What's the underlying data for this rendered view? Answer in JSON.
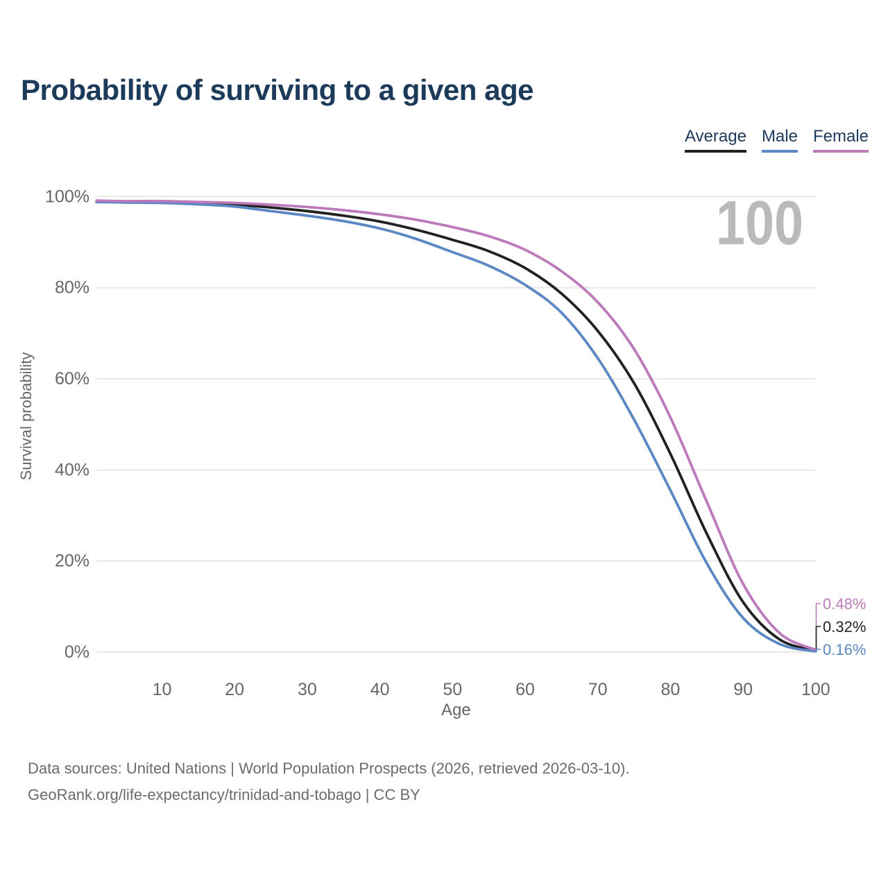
{
  "title": "Probability of surviving to a given age",
  "watermark": "100",
  "chart_data": {
    "type": "line",
    "title": "Probability of surviving to a given age",
    "xlabel": "Age",
    "ylabel": "Survival probability",
    "xlim": [
      1,
      100
    ],
    "ylim": [
      0,
      100
    ],
    "x_ticks": [
      10,
      20,
      30,
      40,
      50,
      60,
      70,
      80,
      90,
      100
    ],
    "y_ticks": [
      0,
      20,
      40,
      60,
      80,
      100
    ],
    "y_tick_suffix": "%",
    "grid": "horizontal-only",
    "legend_position": "top-right",
    "x": [
      1,
      5,
      10,
      15,
      20,
      25,
      30,
      35,
      40,
      45,
      50,
      55,
      60,
      65,
      70,
      75,
      80,
      85,
      90,
      95,
      100
    ],
    "series": [
      {
        "name": "Average",
        "color": "#222222",
        "end_label": "0.32%",
        "values": [
          99.0,
          98.9,
          98.8,
          98.6,
          98.2,
          97.6,
          96.8,
          95.8,
          94.5,
          92.7,
          90.5,
          88.0,
          84.3,
          78.7,
          70.5,
          59.0,
          43.5,
          26.0,
          11.0,
          2.8,
          0.32
        ]
      },
      {
        "name": "Male",
        "color": "#5b87c5",
        "end_label": "0.16%",
        "values": [
          98.8,
          98.7,
          98.6,
          98.3,
          97.8,
          96.8,
          95.8,
          94.6,
          93.0,
          90.7,
          87.8,
          84.8,
          80.6,
          74.5,
          64.5,
          51.0,
          35.5,
          19.5,
          7.5,
          1.8,
          0.16
        ]
      },
      {
        "name": "Female",
        "color": "#bd7abb",
        "end_label": "0.48%",
        "values": [
          99.1,
          99.0,
          99.0,
          98.8,
          98.6,
          98.2,
          97.7,
          97.0,
          96.1,
          94.9,
          93.3,
          91.3,
          88.3,
          83.6,
          76.8,
          66.5,
          51.5,
          33.0,
          15.0,
          4.2,
          0.48
        ]
      }
    ],
    "watermark": "100"
  },
  "colors": {
    "title_text": "#1c3a5a",
    "axis_text": "#666666",
    "gridline": "#e8e8e8",
    "watermark": "#bababa",
    "average": "#222222",
    "male": "#5b87c5",
    "female": "#bd7abb"
  },
  "footer": {
    "line1": "Data sources: United Nations | World Population Prospects (2026, retrieved 2026-03-10).",
    "line2": "GeoRank.org/life-expectancy/trinidad-and-tobago | CC BY"
  }
}
